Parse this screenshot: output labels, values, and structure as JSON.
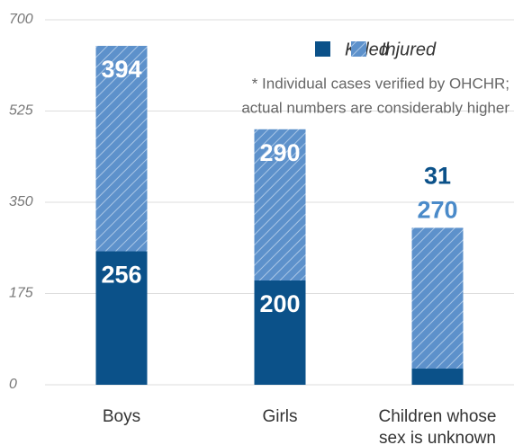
{
  "chart_data": {
    "type": "stacked_bar",
    "categories": [
      "Boys",
      "Girls",
      "Children whose sex is unknown"
    ],
    "series": [
      {
        "name": "Killed",
        "color": "#0b5189",
        "values": [
          256,
          200,
          31
        ]
      },
      {
        "name": "Injured",
        "color": "#5d91cb",
        "values": [
          394,
          290,
          270
        ]
      }
    ],
    "note": [
      "* Individual cases verified by OHCHR;",
      "actual numbers are considerably higher"
    ],
    "ylim": [
      0,
      700
    ],
    "yticks": [
      0,
      175,
      350,
      525,
      700
    ],
    "grid": true
  }
}
